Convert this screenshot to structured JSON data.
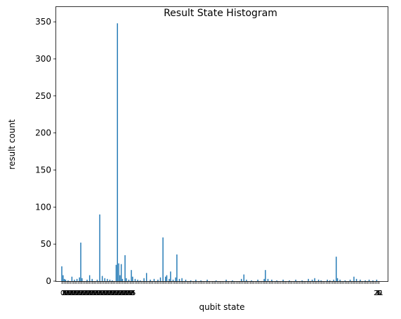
{
  "chart_data": {
    "type": "bar",
    "title": "Result State Histogram",
    "xlabel": "qubit state",
    "ylabel": "result count",
    "ylim": [
      0,
      370
    ],
    "yticks": [
      0,
      50,
      100,
      150,
      200,
      250,
      300,
      350
    ],
    "grid": false,
    "legend": "none",
    "bar_color": "#1f77b4",
    "x_tick_label_fragments": [
      "0",
      "1",
      "2",
      "3",
      "4",
      "5"
    ],
    "bars": [
      {
        "x": 0,
        "value": 20
      },
      {
        "x": 1,
        "value": 8
      },
      {
        "x": 2,
        "value": 3
      },
      {
        "x": 3,
        "value": 2
      },
      {
        "x": 5,
        "value": 1
      },
      {
        "x": 8,
        "value": 6
      },
      {
        "x": 10,
        "value": 2
      },
      {
        "x": 12,
        "value": 3
      },
      {
        "x": 14,
        "value": 5
      },
      {
        "x": 15,
        "value": 52
      },
      {
        "x": 16,
        "value": 4
      },
      {
        "x": 20,
        "value": 2
      },
      {
        "x": 22,
        "value": 8
      },
      {
        "x": 24,
        "value": 3
      },
      {
        "x": 28,
        "value": 2
      },
      {
        "x": 30,
        "value": 90
      },
      {
        "x": 32,
        "value": 7
      },
      {
        "x": 34,
        "value": 4
      },
      {
        "x": 36,
        "value": 3
      },
      {
        "x": 38,
        "value": 2
      },
      {
        "x": 40,
        "value": 1
      },
      {
        "x": 43,
        "value": 22
      },
      {
        "x": 44,
        "value": 348
      },
      {
        "x": 45,
        "value": 24
      },
      {
        "x": 46,
        "value": 8
      },
      {
        "x": 47,
        "value": 23
      },
      {
        "x": 48,
        "value": 3
      },
      {
        "x": 50,
        "value": 35
      },
      {
        "x": 51,
        "value": 4
      },
      {
        "x": 53,
        "value": 2
      },
      {
        "x": 55,
        "value": 15
      },
      {
        "x": 56,
        "value": 6
      },
      {
        "x": 58,
        "value": 3
      },
      {
        "x": 60,
        "value": 2
      },
      {
        "x": 62,
        "value": 1
      },
      {
        "x": 65,
        "value": 4
      },
      {
        "x": 67,
        "value": 11
      },
      {
        "x": 70,
        "value": 2
      },
      {
        "x": 73,
        "value": 3
      },
      {
        "x": 76,
        "value": 2
      },
      {
        "x": 78,
        "value": 5
      },
      {
        "x": 80,
        "value": 59
      },
      {
        "x": 82,
        "value": 6
      },
      {
        "x": 83,
        "value": 8
      },
      {
        "x": 85,
        "value": 3
      },
      {
        "x": 86,
        "value": 13
      },
      {
        "x": 88,
        "value": 2
      },
      {
        "x": 90,
        "value": 5
      },
      {
        "x": 91,
        "value": 36
      },
      {
        "x": 93,
        "value": 3
      },
      {
        "x": 95,
        "value": 4
      },
      {
        "x": 98,
        "value": 2
      },
      {
        "x": 102,
        "value": 1
      },
      {
        "x": 106,
        "value": 2
      },
      {
        "x": 110,
        "value": 1
      },
      {
        "x": 115,
        "value": 2
      },
      {
        "x": 122,
        "value": 1
      },
      {
        "x": 130,
        "value": 2
      },
      {
        "x": 135,
        "value": 1
      },
      {
        "x": 142,
        "value": 3
      },
      {
        "x": 144,
        "value": 9
      },
      {
        "x": 146,
        "value": 2
      },
      {
        "x": 150,
        "value": 1
      },
      {
        "x": 155,
        "value": 2
      },
      {
        "x": 160,
        "value": 3
      },
      {
        "x": 161,
        "value": 15
      },
      {
        "x": 163,
        "value": 3
      },
      {
        "x": 166,
        "value": 2
      },
      {
        "x": 170,
        "value": 1
      },
      {
        "x": 175,
        "value": 2
      },
      {
        "x": 180,
        "value": 1
      },
      {
        "x": 185,
        "value": 2
      },
      {
        "x": 190,
        "value": 1
      },
      {
        "x": 195,
        "value": 3
      },
      {
        "x": 198,
        "value": 2
      },
      {
        "x": 200,
        "value": 4
      },
      {
        "x": 203,
        "value": 2
      },
      {
        "x": 205,
        "value": 1
      },
      {
        "x": 210,
        "value": 2
      },
      {
        "x": 212,
        "value": 1
      },
      {
        "x": 215,
        "value": 2
      },
      {
        "x": 217,
        "value": 33
      },
      {
        "x": 218,
        "value": 4
      },
      {
        "x": 220,
        "value": 2
      },
      {
        "x": 224,
        "value": 1
      },
      {
        "x": 228,
        "value": 2
      },
      {
        "x": 231,
        "value": 6
      },
      {
        "x": 233,
        "value": 3
      },
      {
        "x": 236,
        "value": 2
      },
      {
        "x": 240,
        "value": 1
      },
      {
        "x": 243,
        "value": 2
      },
      {
        "x": 246,
        "value": 1
      },
      {
        "x": 249,
        "value": 2
      }
    ],
    "x_count": 252
  }
}
